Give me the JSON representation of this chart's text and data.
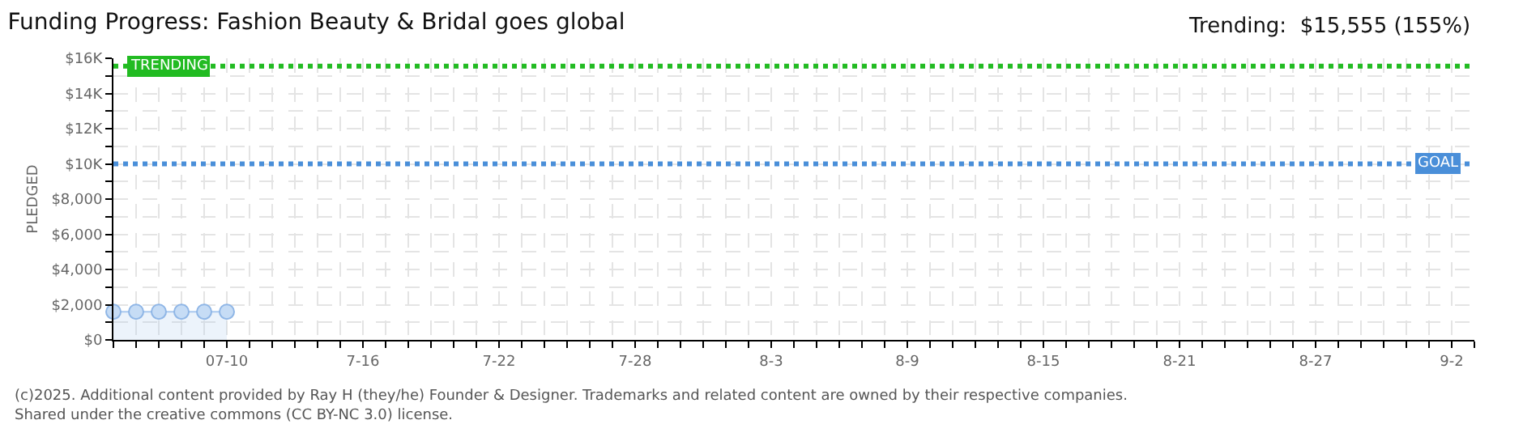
{
  "chart_data": {
    "type": "area",
    "title": "Funding Progress: Fashion Beauty & Bridal goes global",
    "ylabel": "PLEDGED",
    "annotations": [
      "Trending:  $15,555 (155%)",
      "(c)2025. Additional content provided by Ray H (they/he) Founder & Designer. Trademarks and related content are owned by their respective companies.",
      "Shared under the creative commons (CC BY-NC 3.0) license."
    ],
    "x": [
      "--07-05",
      "--07-06",
      "--07-07",
      "--07-08",
      "--07-09",
      "--07-10"
    ],
    "series": [
      {
        "color": "#a9c8ef",
        "values": [
          1600,
          1600,
          1600,
          1600,
          1600,
          1600
        ]
      }
    ],
    "marker": "circle",
    "grid": true,
    "xlim": [
      "--07-05",
      "--09-03"
    ],
    "xticks": [
      {
        "value": "--07-05",
        "label": null
      },
      {
        "value": "--07-06",
        "label": null
      },
      {
        "value": "--07-07",
        "label": null
      },
      {
        "value": "--07-08",
        "label": null
      },
      {
        "value": "--07-09",
        "label": null
      },
      {
        "value": "--07-10",
        "label": "07-10"
      },
      {
        "value": "--07-11",
        "label": null
      },
      {
        "value": "--07-12",
        "label": null
      },
      {
        "value": "--07-13",
        "label": null
      },
      {
        "value": "--07-14",
        "label": null
      },
      {
        "value": "--07-15",
        "label": null
      },
      {
        "value": "--07-16",
        "label": "7-16"
      },
      {
        "value": "--07-17",
        "label": null
      },
      {
        "value": "--07-18",
        "label": null
      },
      {
        "value": "--07-19",
        "label": null
      },
      {
        "value": "--07-20",
        "label": null
      },
      {
        "value": "--07-21",
        "label": null
      },
      {
        "value": "--07-22",
        "label": "7-22"
      },
      {
        "value": "--07-23",
        "label": null
      },
      {
        "value": "--07-24",
        "label": null
      },
      {
        "value": "--07-25",
        "label": null
      },
      {
        "value": "--07-26",
        "label": null
      },
      {
        "value": "--07-27",
        "label": null
      },
      {
        "value": "--07-28",
        "label": "7-28"
      },
      {
        "value": "--07-29",
        "label": null
      },
      {
        "value": "--07-30",
        "label": null
      },
      {
        "value": "--07-31",
        "label": null
      },
      {
        "value": "--08-01",
        "label": null
      },
      {
        "value": "--08-02",
        "label": null
      },
      {
        "value": "--08-03",
        "label": "8-3"
      },
      {
        "value": "--08-04",
        "label": null
      },
      {
        "value": "--08-05",
        "label": null
      },
      {
        "value": "--08-06",
        "label": null
      },
      {
        "value": "--08-07",
        "label": null
      },
      {
        "value": "--08-08",
        "label": null
      },
      {
        "value": "--08-09",
        "label": "8-9"
      },
      {
        "value": "--08-10",
        "label": null
      },
      {
        "value": "--08-11",
        "label": null
      },
      {
        "value": "--08-12",
        "label": null
      },
      {
        "value": "--08-13",
        "label": null
      },
      {
        "value": "--08-14",
        "label": null
      },
      {
        "value": "--08-15",
        "label": "8-15"
      },
      {
        "value": "--08-16",
        "label": null
      },
      {
        "value": "--08-17",
        "label": null
      },
      {
        "value": "--08-18",
        "label": null
      },
      {
        "value": "--08-19",
        "label": null
      },
      {
        "value": "--08-20",
        "label": null
      },
      {
        "value": "--08-21",
        "label": "8-21"
      },
      {
        "value": "--08-22",
        "label": null
      },
      {
        "value": "--08-23",
        "label": null
      },
      {
        "value": "--08-24",
        "label": null
      },
      {
        "value": "--08-25",
        "label": null
      },
      {
        "value": "--08-26",
        "label": null
      },
      {
        "value": "--08-27",
        "label": "8-27"
      },
      {
        "value": "--08-28",
        "label": null
      },
      {
        "value": "--08-29",
        "label": null
      },
      {
        "value": "--08-30",
        "label": null
      },
      {
        "value": "--08-31",
        "label": null
      },
      {
        "value": "--09-01",
        "label": null
      },
      {
        "value": "--09-02",
        "label": "9-2"
      },
      {
        "value": "--09-03",
        "label": null
      }
    ],
    "ylim": [
      0,
      16000
    ],
    "yticks": [
      {
        "value": 0,
        "label": "$0"
      },
      {
        "value": 1000,
        "label": null
      },
      {
        "value": 2000,
        "label": "$2,000"
      },
      {
        "value": 3000,
        "label": null
      },
      {
        "value": 4000,
        "label": "$4,000"
      },
      {
        "value": 5000,
        "label": null
      },
      {
        "value": 6000,
        "label": "$6,000"
      },
      {
        "value": 7000,
        "label": null
      },
      {
        "value": 8000,
        "label": "$8,000"
      },
      {
        "value": 9000,
        "label": null
      },
      {
        "value": 10000,
        "label": "$10K"
      },
      {
        "value": 11000,
        "label": null
      },
      {
        "value": 12000,
        "label": "$12K"
      },
      {
        "value": 13000,
        "label": null
      },
      {
        "value": 14000,
        "label": "$14K"
      },
      {
        "value": 15000,
        "label": null
      },
      {
        "value": 16000,
        "label": "$16K"
      }
    ],
    "ref_lines": [
      {
        "axis": "y",
        "value": 15555,
        "label": "TRENDING",
        "color": "#22bb22",
        "line_style": "dotted"
      },
      {
        "axis": "y",
        "value": 10000,
        "label": "GOAL",
        "color": "#4a8fd9",
        "line_style": "dotted"
      }
    ]
  }
}
